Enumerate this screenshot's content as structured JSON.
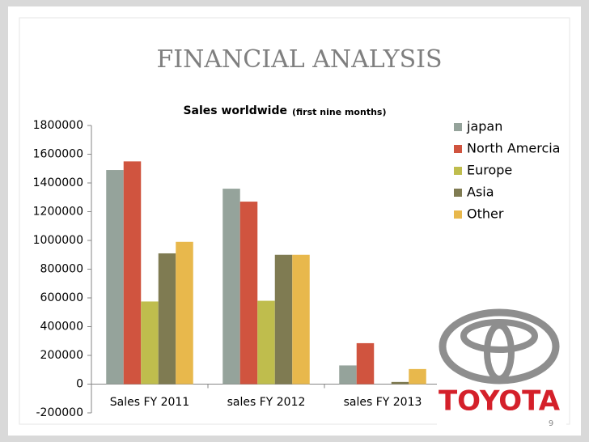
{
  "slide": {
    "title": "FINANCIAL ANALYSIS",
    "logo_text": "TOYOTA",
    "page_number": "9"
  },
  "chart_data": {
    "type": "bar",
    "title": "Sales worldwide",
    "subtitle": "(first nine months)",
    "categories": [
      "Sales FY 2011",
      "sales FY 2012",
      "sales FY 2013"
    ],
    "series": [
      {
        "name": "japan",
        "color": "#95a39b",
        "values": [
          1490000,
          1360000,
          130000
        ]
      },
      {
        "name": "North Amercia",
        "color": "#d0543f",
        "values": [
          1550000,
          1270000,
          285000
        ]
      },
      {
        "name": "Europe",
        "color": "#bfbd4d",
        "values": [
          575000,
          580000,
          0
        ]
      },
      {
        "name": "Asia",
        "color": "#7f7b52",
        "values": [
          910000,
          900000,
          15000
        ]
      },
      {
        "name": "Other",
        "color": "#e8b84c",
        "values": [
          990000,
          900000,
          105000
        ]
      }
    ],
    "ylim": [
      -200000,
      1800000
    ],
    "yticks": [
      -200000,
      0,
      200000,
      400000,
      600000,
      800000,
      1000000,
      1200000,
      1400000,
      1600000,
      1800000
    ],
    "grid": false,
    "legend": "right"
  }
}
